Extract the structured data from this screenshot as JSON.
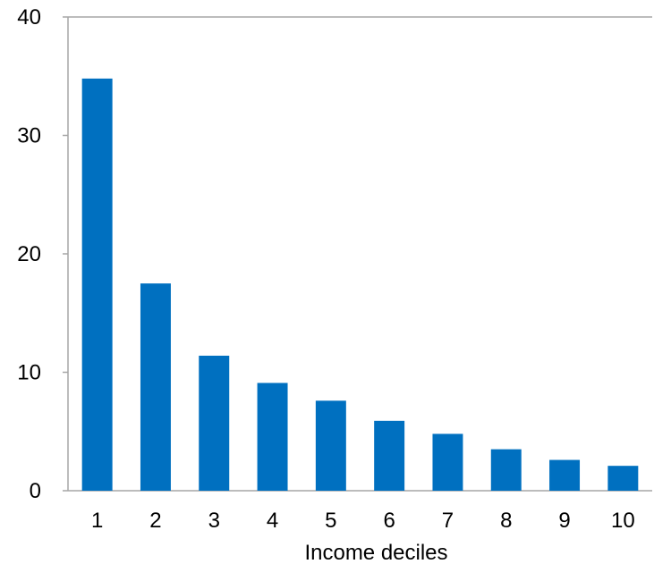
{
  "chart_data": {
    "type": "bar",
    "title": "",
    "xlabel": "Income deciles",
    "ylabel": "",
    "categories": [
      "1",
      "2",
      "3",
      "4",
      "5",
      "6",
      "7",
      "8",
      "9",
      "10"
    ],
    "series": [
      {
        "values": [
          34.8,
          17.5,
          11.4,
          9.1,
          7.6,
          5.9,
          4.8,
          3.5,
          2.6,
          2.1
        ]
      }
    ],
    "ylim": [
      0,
      40
    ],
    "yticks": [
      0,
      10,
      20,
      30,
      40
    ],
    "grid": false,
    "legend": "none",
    "colors": {
      "bar": "#0070C0",
      "axis": "#A6A6A6",
      "text": "#000000"
    }
  }
}
